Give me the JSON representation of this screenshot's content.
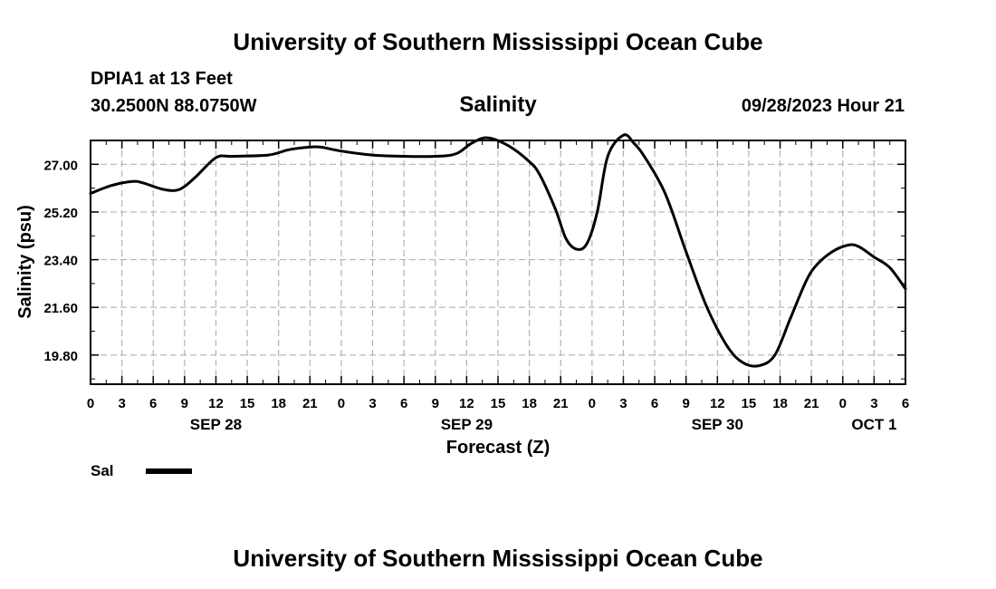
{
  "header": {
    "title": "University of Southern Mississippi Ocean Cube",
    "station": "DPIA1 at 13 Feet",
    "coords": "30.2500N  88.0750W",
    "timestamp": "09/28/2023 Hour 21"
  },
  "footer": {
    "title": "University of Southern Mississippi Ocean Cube"
  },
  "legend": {
    "label": "Sal",
    "color": "#000000"
  },
  "chart_data": {
    "type": "line",
    "title": "Salinity",
    "xlabel": "Forecast (Z)",
    "ylabel": "Salinity (psu)",
    "xlim": [
      0,
      78
    ],
    "ylim": [
      18.7,
      27.9
    ],
    "x_tick_values": [
      0,
      3,
      6,
      9,
      12,
      15,
      18,
      21,
      24,
      27,
      30,
      33,
      36,
      39,
      42,
      45,
      48,
      51,
      54,
      57,
      60,
      63,
      66,
      69,
      72,
      75,
      78
    ],
    "x_tick_labels": [
      "0",
      "3",
      "6",
      "9",
      "12",
      "15",
      "18",
      "21",
      "0",
      "3",
      "6",
      "9",
      "12",
      "15",
      "18",
      "21",
      "0",
      "3",
      "6",
      "9",
      "12",
      "15",
      "18",
      "21",
      "0",
      "3",
      "6"
    ],
    "y_ticks": [
      19.8,
      21.6,
      23.4,
      25.2,
      27.0
    ],
    "y_tick_labels": [
      "19.80",
      "21.60",
      "23.40",
      "25.20",
      "27.00"
    ],
    "date_labels": [
      {
        "x": 12,
        "label": "SEP 28"
      },
      {
        "x": 36,
        "label": "SEP 29"
      },
      {
        "x": 60,
        "label": "SEP 30"
      },
      {
        "x": 75,
        "label": "OCT 1"
      }
    ],
    "grid": true,
    "series": [
      {
        "name": "Sal",
        "color": "#000000",
        "x": [
          0,
          2,
          4,
          5,
          7,
          8.5,
          10,
          12,
          13.5,
          17,
          19,
          21,
          22,
          24,
          27,
          30,
          33,
          35,
          36.5,
          38,
          40,
          42,
          43,
          44.5,
          45.5,
          46.5,
          47.5,
          48.5,
          49.5,
          51,
          52,
          53,
          55,
          57,
          59,
          61,
          62.5,
          64,
          65.5,
          67,
          68.5,
          69.5,
          71,
          72.5,
          73.5,
          75,
          76.5,
          78
        ],
        "y": [
          25.9,
          26.2,
          26.35,
          26.3,
          26.05,
          26.05,
          26.5,
          27.25,
          27.3,
          27.35,
          27.55,
          27.65,
          27.65,
          27.5,
          27.35,
          27.3,
          27.3,
          27.4,
          27.8,
          28.0,
          27.7,
          27.1,
          26.6,
          25.3,
          24.2,
          23.8,
          24.0,
          25.2,
          27.3,
          28.1,
          27.8,
          27.3,
          25.9,
          23.7,
          21.6,
          20.1,
          19.5,
          19.4,
          19.8,
          21.2,
          22.6,
          23.2,
          23.7,
          23.95,
          23.9,
          23.5,
          23.1,
          22.3
        ]
      }
    ]
  }
}
